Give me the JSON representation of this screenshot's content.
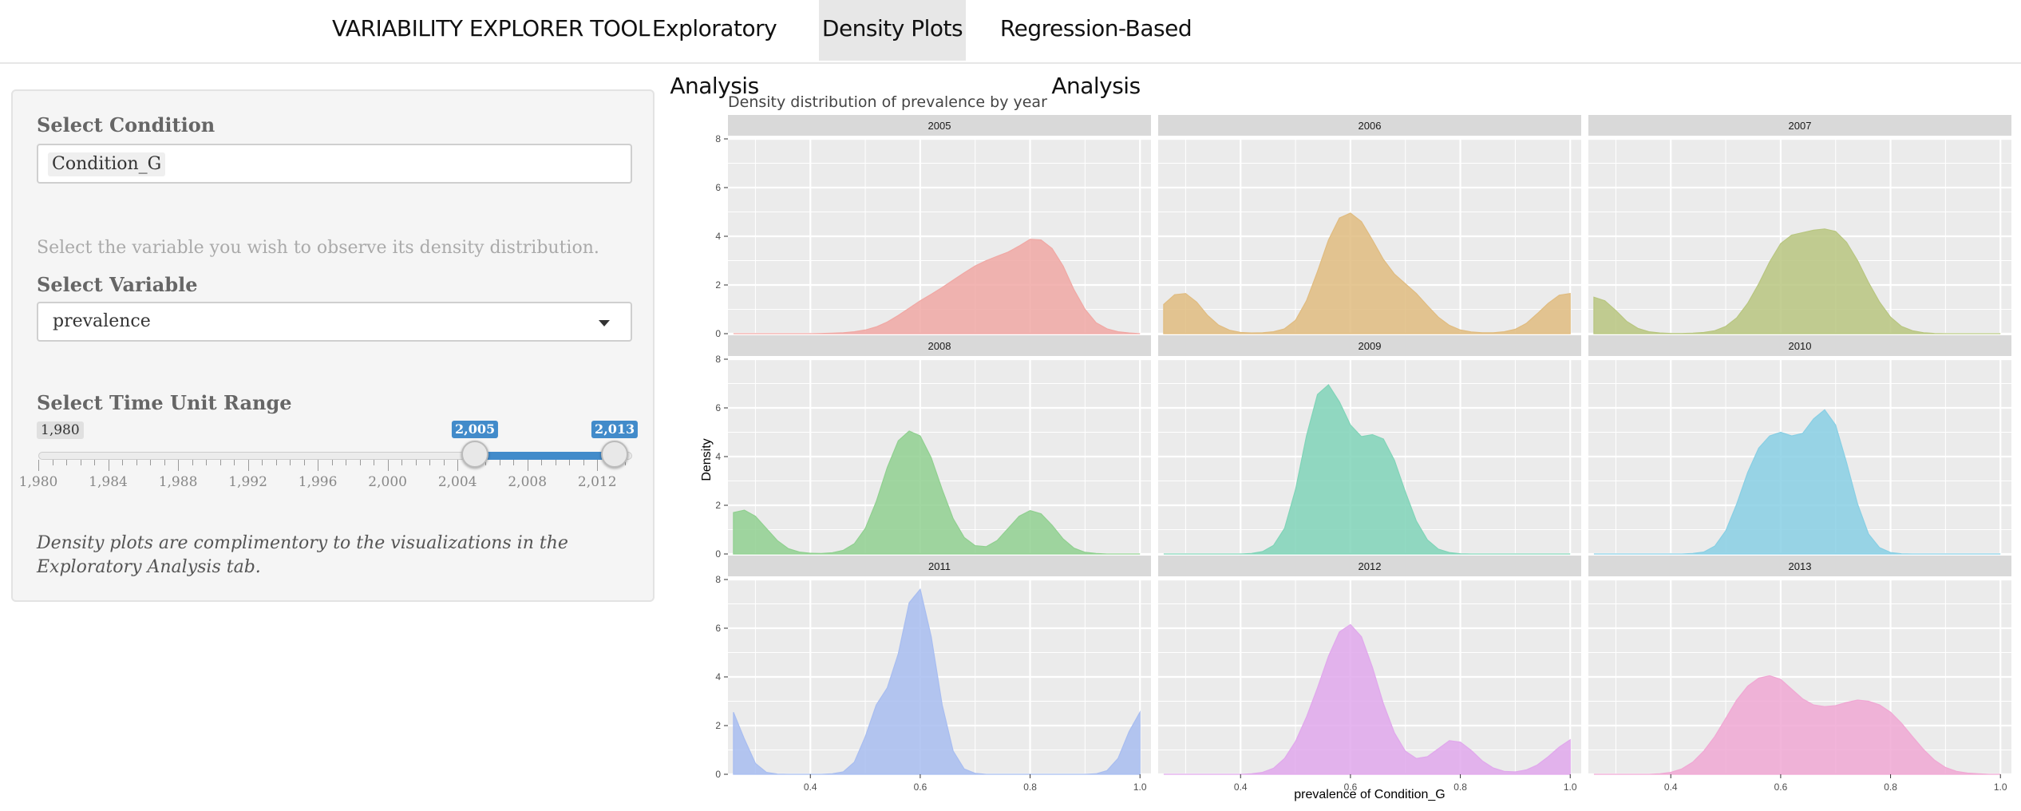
{
  "navbar": {
    "brand": "VARIABILITY EXPLORER TOOL",
    "tabs": [
      {
        "label": "Exploratory Analysis",
        "active": false
      },
      {
        "label": "Density Plots",
        "active": true
      },
      {
        "label": "Regression-Based Analysis",
        "active": false
      }
    ]
  },
  "sidebar": {
    "condition_label": "Select Condition",
    "condition_value": "Condition_G",
    "variable_help": "Select the variable you wish to observe its density distribution.",
    "variable_label": "Select Variable",
    "variable_value": "prevalence",
    "time_label": "Select Time Unit Range",
    "slider": {
      "min": 1980,
      "max": 2014,
      "min_label": "1,980",
      "from": 2005,
      "to": 2013,
      "from_label": "2,005",
      "to_label": "2,013",
      "tick_labels": [
        "1,980",
        "1,984",
        "1,988",
        "1,992",
        "1,996",
        "2,000",
        "2,004",
        "2,008",
        "2,012"
      ]
    },
    "note": "Density plots are complimentory to the visualizations in the Exploratory Analysis tab."
  },
  "chart_data": {
    "type": "area",
    "title": "Density distribution of prevalence by year",
    "xlabel": "prevalence of Condition_G",
    "ylabel": "Density",
    "xlim": [
      0.25,
      1.02
    ],
    "ylim": [
      0,
      8
    ],
    "x_ticks": [
      "0.4",
      "0.6",
      "0.8",
      "1.0"
    ],
    "y_ticks": [
      "0",
      "2",
      "4",
      "6",
      "8"
    ],
    "grid": true,
    "x": [
      0.26,
      0.28,
      0.3,
      0.32,
      0.34,
      0.36,
      0.38,
      0.4,
      0.42,
      0.44,
      0.46,
      0.48,
      0.5,
      0.52,
      0.54,
      0.56,
      0.58,
      0.6,
      0.62,
      0.64,
      0.66,
      0.68,
      0.7,
      0.72,
      0.74,
      0.76,
      0.78,
      0.8,
      0.82,
      0.84,
      0.86,
      0.88,
      0.9,
      0.92,
      0.94,
      0.96,
      0.98,
      1.0
    ],
    "series": [
      {
        "name": "2005",
        "color": "#f0a8a4",
        "values": [
          0,
          0,
          0,
          0,
          0,
          0,
          0,
          0,
          0.01,
          0.02,
          0.04,
          0.08,
          0.15,
          0.28,
          0.48,
          0.75,
          1.05,
          1.35,
          1.62,
          1.9,
          2.2,
          2.5,
          2.78,
          3.0,
          3.18,
          3.35,
          3.6,
          3.88,
          3.85,
          3.5,
          2.78,
          1.8,
          1.0,
          0.45,
          0.2,
          0.08,
          0.03,
          0
        ]
      },
      {
        "name": "2006",
        "color": "#e0bc80",
        "values": [
          1.2,
          1.6,
          1.65,
          1.3,
          0.75,
          0.35,
          0.14,
          0.05,
          0.03,
          0.04,
          0.08,
          0.2,
          0.55,
          1.35,
          2.55,
          3.85,
          4.75,
          4.95,
          4.6,
          3.85,
          3.05,
          2.45,
          2.05,
          1.65,
          1.15,
          0.68,
          0.34,
          0.15,
          0.07,
          0.04,
          0.04,
          0.08,
          0.18,
          0.42,
          0.82,
          1.25,
          1.58,
          1.65
        ]
      },
      {
        "name": "2007",
        "color": "#b8c680",
        "values": [
          1.5,
          1.35,
          0.95,
          0.5,
          0.22,
          0.08,
          0.03,
          0.01,
          0.01,
          0.02,
          0.05,
          0.12,
          0.3,
          0.65,
          1.25,
          2.05,
          2.95,
          3.7,
          4.05,
          4.15,
          4.25,
          4.3,
          4.2,
          3.75,
          3.0,
          2.1,
          1.3,
          0.68,
          0.3,
          0.12,
          0.04,
          0.01,
          0,
          0,
          0,
          0,
          0,
          0
        ]
      },
      {
        "name": "2008",
        "color": "#90d090",
        "values": [
          1.7,
          1.8,
          1.55,
          1.05,
          0.55,
          0.22,
          0.08,
          0.03,
          0.02,
          0.05,
          0.15,
          0.42,
          1.05,
          2.15,
          3.55,
          4.65,
          5.05,
          4.85,
          3.95,
          2.65,
          1.45,
          0.68,
          0.34,
          0.3,
          0.55,
          1.05,
          1.55,
          1.78,
          1.65,
          1.18,
          0.62,
          0.24,
          0.07,
          0.02,
          0,
          0,
          0,
          0
        ]
      },
      {
        "name": "2009",
        "color": "#80d4b8",
        "values": [
          0,
          0,
          0,
          0,
          0,
          0,
          0,
          0,
          0.02,
          0.1,
          0.35,
          1.05,
          2.65,
          4.85,
          6.55,
          6.95,
          6.25,
          5.3,
          4.82,
          4.9,
          4.72,
          3.85,
          2.55,
          1.35,
          0.58,
          0.2,
          0.06,
          0.01,
          0,
          0,
          0,
          0,
          0,
          0,
          0,
          0,
          0,
          0
        ]
      },
      {
        "name": "2010",
        "color": "#88cfe4",
        "values": [
          0,
          0,
          0,
          0,
          0,
          0,
          0,
          0,
          0,
          0.02,
          0.08,
          0.32,
          0.95,
          2.05,
          3.35,
          4.35,
          4.85,
          5.0,
          4.85,
          4.95,
          5.55,
          5.92,
          5.3,
          3.75,
          2.05,
          0.82,
          0.26,
          0.06,
          0.01,
          0,
          0,
          0,
          0,
          0,
          0,
          0,
          0,
          0
        ]
      },
      {
        "name": "2011",
        "color": "#a8bdf0",
        "values": [
          2.55,
          1.45,
          0.45,
          0.08,
          0.01,
          0,
          0,
          0,
          0,
          0.02,
          0.1,
          0.5,
          1.55,
          2.85,
          3.55,
          4.95,
          7.05,
          7.6,
          5.65,
          2.85,
          0.95,
          0.22,
          0.04,
          0,
          0,
          0,
          0,
          0,
          0,
          0,
          0,
          0,
          0,
          0.02,
          0.15,
          0.65,
          1.75,
          2.55
        ]
      },
      {
        "name": "2012",
        "color": "#e0a8ec",
        "values": [
          0,
          0,
          0,
          0,
          0,
          0,
          0,
          0,
          0.02,
          0.08,
          0.25,
          0.65,
          1.35,
          2.35,
          3.55,
          4.85,
          5.85,
          6.15,
          5.65,
          4.4,
          2.9,
          1.7,
          0.95,
          0.65,
          0.72,
          1.05,
          1.38,
          1.32,
          0.98,
          0.55,
          0.26,
          0.12,
          0.1,
          0.18,
          0.38,
          0.72,
          1.12,
          1.42
        ]
      },
      {
        "name": "2013",
        "color": "#f0a8d4",
        "values": [
          0,
          0,
          0,
          0,
          0,
          0,
          0.02,
          0.08,
          0.22,
          0.5,
          0.95,
          1.55,
          2.3,
          3.05,
          3.62,
          3.95,
          4.05,
          3.9,
          3.5,
          3.1,
          2.85,
          2.78,
          2.82,
          2.95,
          3.05,
          3.0,
          2.85,
          2.55,
          2.1,
          1.55,
          1.02,
          0.58,
          0.28,
          0.12,
          0.05,
          0.02,
          0,
          0
        ]
      }
    ]
  }
}
